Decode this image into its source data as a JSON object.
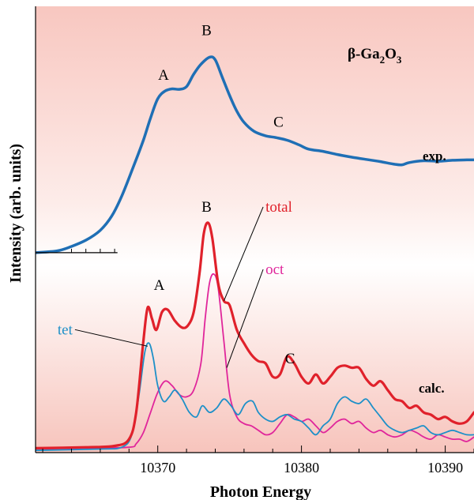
{
  "chart_data": {
    "type": "line",
    "xlabel": "Photon Energy",
    "ylabel": "Intensity (arb. units)",
    "xlim": [
      10361.5,
      10392
    ],
    "xticks": [
      10370,
      10380,
      10390
    ],
    "grid": false,
    "compound_label": {
      "prefix": "β-Ga",
      "sub1": "2",
      "mid": "O",
      "sub2": "3"
    },
    "panel_labels": {
      "exp": "exp.",
      "calc": "calc."
    },
    "feature_labels": [
      {
        "text": "A",
        "panel": "exp",
        "x": 10370.4,
        "y": 0.835
      },
      {
        "text": "B",
        "panel": "exp",
        "x": 10373.4,
        "y": 0.935
      },
      {
        "text": "C",
        "panel": "exp",
        "x": 10378.4,
        "y": 0.73
      },
      {
        "text": "B",
        "panel": "calc",
        "x": 10373.4,
        "y": 0.54
      },
      {
        "text": "A",
        "panel": "calc",
        "x": 10370.1,
        "y": 0.365
      },
      {
        "text": "C",
        "panel": "calc",
        "x": 10379.2,
        "y": 0.2
      }
    ],
    "series": [
      {
        "name": "exp.",
        "color": "#1f6fb5",
        "width": 3.5,
        "x": [
          10361.5,
          10363,
          10364,
          10365,
          10366,
          10366.8,
          10367.5,
          10368.3,
          10369,
          10369.5,
          10370,
          10370.5,
          10371,
          10371.5,
          10372,
          10372.5,
          10373,
          10373.6,
          10374,
          10374.5,
          10375,
          10375.5,
          10376,
          10376.7,
          10377.5,
          10378.2,
          10379,
          10379.8,
          10380.5,
          10381.5,
          10382.5,
          10383.5,
          10384.5,
          10385.5,
          10386.5,
          10387,
          10387.5,
          10388.5,
          10389.5,
          10390.5,
          10391.5,
          10392
        ],
        "y": [
          0.448,
          0.452,
          0.462,
          0.476,
          0.498,
          0.53,
          0.575,
          0.64,
          0.7,
          0.75,
          0.793,
          0.81,
          0.815,
          0.814,
          0.82,
          0.848,
          0.87,
          0.886,
          0.88,
          0.84,
          0.8,
          0.765,
          0.74,
          0.72,
          0.71,
          0.706,
          0.7,
          0.69,
          0.68,
          0.675,
          0.668,
          0.662,
          0.657,
          0.652,
          0.646,
          0.645,
          0.65,
          0.654,
          0.653,
          0.655,
          0.656,
          0.656
        ]
      },
      {
        "name": "total",
        "color": "#e0212b",
        "width": 3.2,
        "x": [
          10361.5,
          10365,
          10367,
          10368,
          10368.5,
          10369,
          10369.3,
          10369.6,
          10369.9,
          10370.3,
          10370.7,
          10371.2,
          10371.7,
          10372.1,
          10372.5,
          10372.9,
          10373.2,
          10373.5,
          10373.8,
          10374.2,
          10374.6,
          10375,
          10375.5,
          10376,
          10376.5,
          10377,
          10377.5,
          10378,
          10378.5,
          10379,
          10379.5,
          10380,
          10380.5,
          10381,
          10381.5,
          10382,
          10382.5,
          10383,
          10383.5,
          10384,
          10384.5,
          10385,
          10385.5,
          10386,
          10386.5,
          10387,
          10387.5,
          10388,
          10388.5,
          10389,
          10389.5,
          10390,
          10390.5,
          10391,
          10391.5,
          10392
        ],
        "y": [
          0.01,
          0.012,
          0.015,
          0.03,
          0.09,
          0.25,
          0.325,
          0.3,
          0.275,
          0.315,
          0.32,
          0.295,
          0.28,
          0.285,
          0.315,
          0.4,
          0.49,
          0.515,
          0.48,
          0.38,
          0.34,
          0.33,
          0.275,
          0.245,
          0.22,
          0.205,
          0.2,
          0.17,
          0.175,
          0.215,
          0.2,
          0.17,
          0.155,
          0.175,
          0.155,
          0.17,
          0.19,
          0.195,
          0.19,
          0.19,
          0.165,
          0.15,
          0.16,
          0.14,
          0.12,
          0.115,
          0.1,
          0.105,
          0.09,
          0.085,
          0.075,
          0.08,
          0.07,
          0.065,
          0.07,
          0.09
        ]
      },
      {
        "name": "oct",
        "color": "#e0269b",
        "width": 1.8,
        "x": [
          10361.5,
          10365,
          10368,
          10368.5,
          10369,
          10369.5,
          10370,
          10370.5,
          10371,
          10371.5,
          10372,
          10372.5,
          10373,
          10373.3,
          10373.6,
          10373.9,
          10374.2,
          10374.6,
          10375,
          10375.5,
          10376,
          10376.5,
          10377,
          10377.5,
          10378,
          10378.5,
          10379,
          10379.5,
          10380,
          10380.5,
          10381,
          10381.5,
          10382,
          10382.5,
          10383,
          10383.5,
          10384,
          10384.5,
          10385,
          10385.5,
          10386,
          10386.5,
          10387,
          10387.5,
          10388,
          10388.5,
          10389,
          10389.5,
          10390,
          10390.5,
          10391,
          10391.5,
          10392
        ],
        "y": [
          0.008,
          0.01,
          0.012,
          0.02,
          0.045,
          0.09,
          0.135,
          0.16,
          0.15,
          0.13,
          0.125,
          0.14,
          0.2,
          0.3,
          0.38,
          0.4,
          0.37,
          0.25,
          0.13,
          0.08,
          0.065,
          0.06,
          0.05,
          0.04,
          0.045,
          0.065,
          0.085,
          0.08,
          0.07,
          0.075,
          0.06,
          0.045,
          0.055,
          0.07,
          0.075,
          0.065,
          0.07,
          0.055,
          0.045,
          0.05,
          0.04,
          0.035,
          0.04,
          0.05,
          0.045,
          0.035,
          0.03,
          0.04,
          0.035,
          0.03,
          0.03,
          0.025,
          0.035
        ]
      },
      {
        "name": "tet",
        "color": "#1e90c8",
        "width": 1.8,
        "x": [
          10361.5,
          10366,
          10367.5,
          10368.2,
          10368.7,
          10369.1,
          10369.4,
          10369.7,
          10370,
          10370.4,
          10370.8,
          10371.2,
          10371.7,
          10372.2,
          10372.7,
          10373.1,
          10373.6,
          10374.1,
          10374.6,
          10375.1,
          10375.6,
          10376.1,
          10376.6,
          10377,
          10377.5,
          10378,
          10378.5,
          10379,
          10379.5,
          10380,
          10380.5,
          10381,
          10381.5,
          10382,
          10382.5,
          10383,
          10383.5,
          10384,
          10384.5,
          10385,
          10385.5,
          10386,
          10386.5,
          10387,
          10387.5,
          10388,
          10388.5,
          10389,
          10389.5,
          10390,
          10390.5,
          10391,
          10391.5,
          10392
        ],
        "y": [
          0.005,
          0.008,
          0.012,
          0.04,
          0.13,
          0.225,
          0.245,
          0.21,
          0.15,
          0.115,
          0.125,
          0.14,
          0.12,
          0.09,
          0.08,
          0.105,
          0.09,
          0.1,
          0.12,
          0.105,
          0.085,
          0.11,
          0.115,
          0.09,
          0.075,
          0.07,
          0.08,
          0.085,
          0.075,
          0.07,
          0.055,
          0.04,
          0.06,
          0.075,
          0.11,
          0.125,
          0.115,
          0.11,
          0.12,
          0.1,
          0.08,
          0.06,
          0.05,
          0.045,
          0.05,
          0.055,
          0.06,
          0.045,
          0.04,
          0.045,
          0.05,
          0.045,
          0.04,
          0.04
        ]
      }
    ],
    "legend": [
      {
        "text": "total",
        "color": "#e0212b",
        "series": "total",
        "at_x": 10374.6,
        "label_x": 10377.5,
        "label_y": 0.54
      },
      {
        "text": "oct",
        "color": "#e0269b",
        "series": "oct",
        "at_x": 10374.8,
        "label_x": 10377.5,
        "label_y": 0.4
      },
      {
        "text": "tet",
        "color": "#1e90c8",
        "series": "tet",
        "at_x": 10369.3,
        "label_x": 10363.8,
        "label_y": 0.265
      }
    ]
  }
}
